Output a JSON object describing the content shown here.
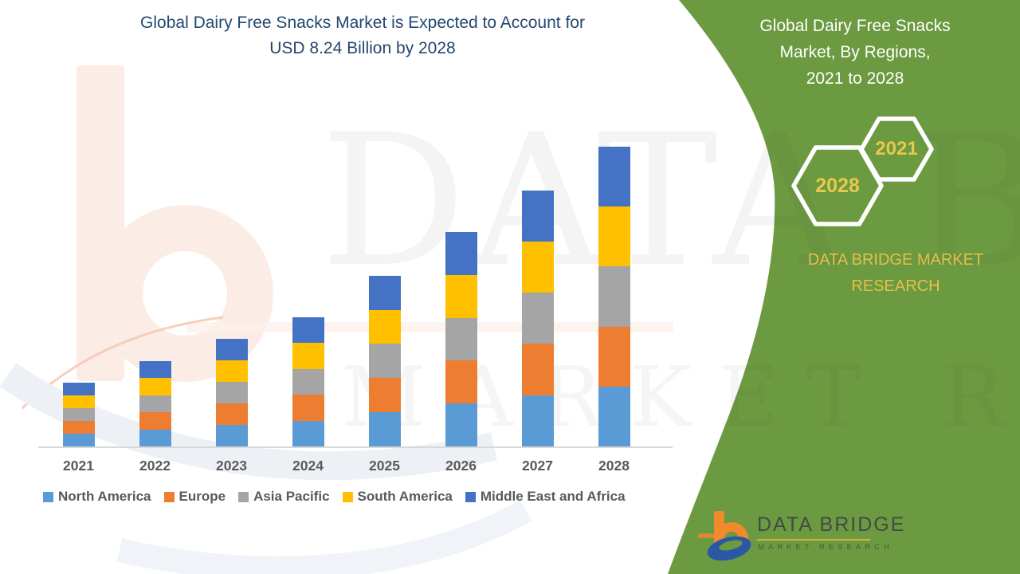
{
  "header": {
    "title_line1": "Global Dairy Free Snacks Market is Expected to Account for",
    "title_line2": "USD 8.24 Billion by 2028"
  },
  "side_panel": {
    "title_line1": "Global Dairy Free Snacks",
    "title_line2": "Market, By Regions,",
    "title_line3": "2021 to 2028",
    "hexagon_back_year": "2028",
    "hexagon_front_year": "2021",
    "brand_line1": "DATA BRIDGE MARKET",
    "brand_line2": "RESEARCH",
    "background_color": "#6C9A40",
    "accent_gold": "#E9C44E"
  },
  "footer_logo": {
    "wordmark": "DATA BRIDGE",
    "tagline": "MARKET RESEARCH"
  },
  "watermark": {
    "line1": "DATA BRIDGE",
    "line2": "MARKET RESEARCH"
  },
  "chart_data": {
    "type": "bar",
    "stacked": true,
    "title": "Global Dairy Free Snacks Market is Expected to Account for USD 8.24 Billion by 2028",
    "unit": "USD Billion",
    "categories": [
      "2021",
      "2022",
      "2023",
      "2024",
      "2025",
      "2026",
      "2027",
      "2028"
    ],
    "series": [
      {
        "name": "North America",
        "color": "#5B9BD5",
        "values": [
          0.35,
          0.47,
          0.59,
          0.71,
          0.94,
          1.18,
          1.41,
          1.65
        ]
      },
      {
        "name": "Europe",
        "color": "#ED7D31",
        "values": [
          0.35,
          0.47,
          0.59,
          0.71,
          0.94,
          1.18,
          1.41,
          1.65
        ]
      },
      {
        "name": "Asia Pacific",
        "color": "#A5A5A5",
        "values": [
          0.35,
          0.47,
          0.59,
          0.71,
          0.94,
          1.18,
          1.41,
          1.65
        ]
      },
      {
        "name": "South America",
        "color": "#FFC000",
        "values": [
          0.35,
          0.47,
          0.59,
          0.71,
          0.94,
          1.18,
          1.41,
          1.65
        ]
      },
      {
        "name": "Middle East and Africa",
        "color": "#4472C4",
        "values": [
          0.35,
          0.47,
          0.59,
          0.71,
          0.94,
          1.18,
          1.41,
          1.65
        ]
      }
    ],
    "totals": [
      1.77,
      2.36,
      2.95,
      3.56,
      4.72,
      5.89,
      7.04,
      8.24
    ],
    "ylim": [
      0,
      8.4
    ],
    "gridlines": false,
    "value_axis_visible": false,
    "legend_position": "bottom"
  }
}
